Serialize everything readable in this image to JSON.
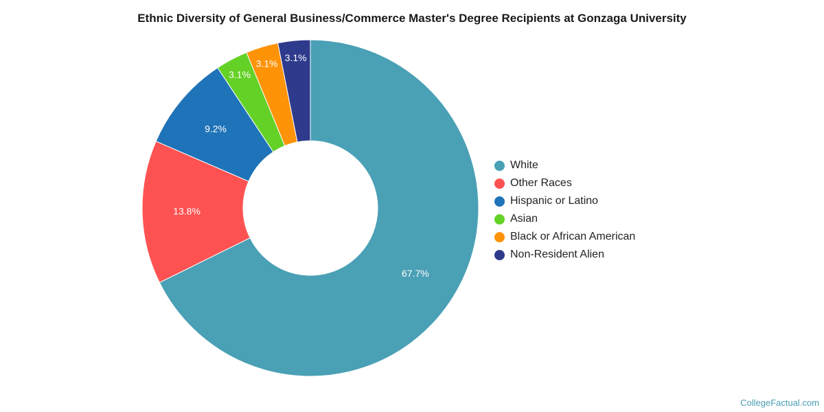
{
  "chart_data": {
    "type": "pie",
    "title": "Ethnic Diversity of General Business/Commerce Master's Degree Recipients at Gonzaga University",
    "series": [
      {
        "categories": [
          "White",
          "Other Races",
          "Hispanic or Latino",
          "Asian",
          "Black or African American",
          "Non-Resident Alien"
        ],
        "values": [
          67.7,
          13.8,
          9.2,
          3.1,
          3.1,
          3.1
        ],
        "labels": [
          "67.7%",
          "13.8%",
          "9.2%",
          "3.1%",
          "3.1%",
          "3.1%"
        ],
        "colors": [
          "#4aa0b5",
          "#fe5252",
          "#1f73b8",
          "#64d126",
          "#fe9308",
          "#2e3a8c"
        ]
      }
    ],
    "legend_position": "right",
    "donut": true
  },
  "credit": "CollegeFactual.com"
}
